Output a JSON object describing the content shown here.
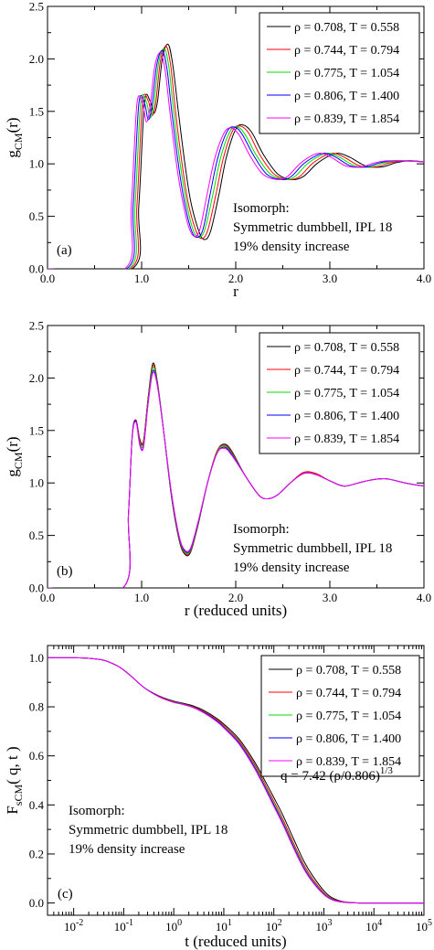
{
  "chart_data": [
    {
      "type": "line",
      "panel_label": "(a)",
      "xlabel": "r",
      "ylabel_main": "g",
      "ylabel_sub": "CM",
      "ylabel_tail": "(r)",
      "xlim": [
        0,
        4
      ],
      "ylim": [
        0,
        2.5
      ],
      "xticks": [
        "0.0",
        "1.0",
        "2.0",
        "3.0",
        "4.0"
      ],
      "yticks": [
        "0.0",
        "0.5",
        "1.0",
        "1.5",
        "2.0",
        "2.5"
      ],
      "grid": false,
      "legend_position": "top-right",
      "annotation": [
        "Isomorph:",
        "Symmetric dumbbell, IPL 18",
        "19% density increase"
      ],
      "series": [
        {
          "name": "ρ = 0.708, T = 0.558",
          "color": "#000000",
          "x": [
            0.0,
            0.9,
            0.97,
            1.03,
            1.09,
            1.13,
            1.17,
            1.22,
            1.28,
            1.33,
            1.39,
            1.46,
            1.52,
            1.6,
            1.66,
            1.73,
            1.82,
            1.9,
            2.0,
            2.08,
            2.17,
            2.3,
            2.45,
            2.6,
            2.72,
            2.86,
            3.0,
            3.1,
            3.22,
            3.38,
            3.55,
            3.7,
            3.85,
            4.0
          ],
          "y": [
            0.0,
            0.0,
            0.6,
            1.58,
            1.6,
            1.48,
            1.6,
            2.0,
            2.14,
            1.95,
            1.5,
            1.0,
            0.65,
            0.38,
            0.28,
            0.35,
            0.7,
            1.06,
            1.33,
            1.37,
            1.3,
            1.08,
            0.9,
            0.85,
            0.88,
            1.0,
            1.08,
            1.1,
            1.06,
            0.98,
            0.97,
            1.01,
            1.03,
            1.02
          ]
        },
        {
          "name": "ρ = 0.744, T = 0.794",
          "color": "#ff0000",
          "x": [
            0.0,
            0.88,
            0.95,
            1.01,
            1.07,
            1.11,
            1.15,
            1.2,
            1.26,
            1.31,
            1.36,
            1.43,
            1.49,
            1.57,
            1.63,
            1.7,
            1.79,
            1.87,
            1.97,
            2.05,
            2.14,
            2.26,
            2.41,
            2.56,
            2.68,
            2.81,
            2.95,
            3.05,
            3.16,
            3.32,
            3.49,
            3.64,
            3.8,
            4.0
          ],
          "y": [
            0.0,
            0.0,
            0.6,
            1.58,
            1.6,
            1.46,
            1.58,
            1.98,
            2.12,
            1.93,
            1.5,
            1.0,
            0.65,
            0.38,
            0.29,
            0.36,
            0.71,
            1.06,
            1.32,
            1.36,
            1.29,
            1.08,
            0.9,
            0.85,
            0.88,
            1.0,
            1.08,
            1.1,
            1.06,
            0.98,
            0.97,
            1.01,
            1.03,
            1.02
          ]
        },
        {
          "name": "ρ = 0.775, T = 1.054",
          "color": "#00dd00",
          "x": [
            0.0,
            0.86,
            0.93,
            0.99,
            1.05,
            1.09,
            1.13,
            1.18,
            1.24,
            1.29,
            1.34,
            1.41,
            1.47,
            1.54,
            1.6,
            1.67,
            1.76,
            1.84,
            1.94,
            2.02,
            2.1,
            2.22,
            2.37,
            2.52,
            2.63,
            2.76,
            2.9,
            3.0,
            3.11,
            3.27,
            3.43,
            3.58,
            3.74,
            4.0
          ],
          "y": [
            0.0,
            0.0,
            0.6,
            1.58,
            1.59,
            1.44,
            1.56,
            1.96,
            2.1,
            1.92,
            1.5,
            1.0,
            0.66,
            0.39,
            0.3,
            0.37,
            0.72,
            1.06,
            1.31,
            1.35,
            1.28,
            1.08,
            0.9,
            0.85,
            0.88,
            1.0,
            1.08,
            1.1,
            1.06,
            0.98,
            0.97,
            1.01,
            1.03,
            1.02
          ]
        },
        {
          "name": "ρ = 0.806, T = 1.400",
          "color": "#0000ff",
          "x": [
            0.0,
            0.84,
            0.91,
            0.97,
            1.03,
            1.07,
            1.11,
            1.16,
            1.22,
            1.27,
            1.32,
            1.39,
            1.45,
            1.52,
            1.58,
            1.65,
            1.73,
            1.81,
            1.91,
            1.99,
            2.07,
            2.19,
            2.33,
            2.48,
            2.59,
            2.72,
            2.86,
            2.96,
            3.07,
            3.22,
            3.38,
            3.53,
            3.68,
            4.0
          ],
          "y": [
            0.0,
            0.0,
            0.6,
            1.57,
            1.58,
            1.42,
            1.55,
            1.94,
            2.08,
            1.9,
            1.5,
            1.0,
            0.66,
            0.39,
            0.3,
            0.37,
            0.72,
            1.06,
            1.31,
            1.35,
            1.28,
            1.08,
            0.9,
            0.85,
            0.88,
            1.0,
            1.08,
            1.1,
            1.06,
            0.98,
            0.97,
            1.01,
            1.03,
            1.02
          ]
        },
        {
          "name": "ρ = 0.839, T = 1.854",
          "color": "#ff00ff",
          "x": [
            0.0,
            0.82,
            0.89,
            0.95,
            1.01,
            1.05,
            1.09,
            1.14,
            1.2,
            1.25,
            1.3,
            1.37,
            1.43,
            1.5,
            1.56,
            1.62,
            1.7,
            1.78,
            1.88,
            1.96,
            2.04,
            2.15,
            2.29,
            2.44,
            2.55,
            2.68,
            2.81,
            2.91,
            3.02,
            3.17,
            3.33,
            3.48,
            3.63,
            4.0
          ],
          "y": [
            0.0,
            0.0,
            0.6,
            1.57,
            1.57,
            1.4,
            1.54,
            1.93,
            2.06,
            1.89,
            1.5,
            1.0,
            0.67,
            0.4,
            0.31,
            0.38,
            0.73,
            1.06,
            1.3,
            1.34,
            1.27,
            1.08,
            0.9,
            0.85,
            0.88,
            1.0,
            1.08,
            1.1,
            1.06,
            0.98,
            0.97,
            1.01,
            1.03,
            1.02
          ]
        }
      ]
    },
    {
      "type": "line",
      "panel_label": "(b)",
      "xlabel": "r (reduced units)",
      "ylabel_main": "g",
      "ylabel_sub": "CM",
      "ylabel_tail": "(r)",
      "xlim": [
        0,
        4
      ],
      "ylim": [
        0,
        2.5
      ],
      "xticks": [
        "0.0",
        "1.0",
        "2.0",
        "3.0",
        "4.0"
      ],
      "yticks": [
        "0.0",
        "0.5",
        "1.0",
        "1.5",
        "2.0",
        "2.5"
      ],
      "grid": false,
      "legend_position": "top-right",
      "annotation": [
        "Isomorph:",
        "Symmetric dumbbell, IPL 18",
        "19% density increase"
      ],
      "x": [
        0.0,
        0.8,
        0.86,
        0.9,
        0.94,
        0.98,
        1.02,
        1.07,
        1.12,
        1.17,
        1.24,
        1.32,
        1.4,
        1.46,
        1.52,
        1.6,
        1.7,
        1.8,
        1.88,
        1.96,
        2.1,
        2.25,
        2.35,
        2.45,
        2.58,
        2.72,
        2.85,
        3.0,
        3.15,
        3.3,
        3.45,
        3.6,
        3.8,
        4.0
      ],
      "series": [
        {
          "name": "ρ = 0.708, T = 0.558",
          "color": "#000000",
          "y": [
            0.0,
            0.0,
            0.7,
            1.45,
            1.6,
            1.42,
            1.4,
            1.82,
            2.14,
            1.95,
            1.45,
            0.85,
            0.45,
            0.32,
            0.34,
            0.6,
            1.0,
            1.3,
            1.37,
            1.3,
            1.07,
            0.88,
            0.85,
            0.89,
            1.0,
            1.1,
            1.09,
            1.02,
            0.97,
            1.0,
            1.03,
            1.04,
            1.0,
            0.97
          ]
        },
        {
          "name": "ρ = 0.744, T = 0.794",
          "color": "#ff0000",
          "y": [
            0.0,
            0.0,
            0.7,
            1.45,
            1.6,
            1.41,
            1.39,
            1.81,
            2.12,
            1.94,
            1.45,
            0.86,
            0.46,
            0.33,
            0.35,
            0.6,
            1.0,
            1.3,
            1.36,
            1.29,
            1.07,
            0.88,
            0.85,
            0.89,
            1.0,
            1.1,
            1.09,
            1.02,
            0.97,
            1.0,
            1.03,
            1.04,
            1.0,
            0.97
          ]
        },
        {
          "name": "ρ = 0.775, T = 1.054",
          "color": "#00dd00",
          "y": [
            0.0,
            0.0,
            0.7,
            1.44,
            1.59,
            1.39,
            1.37,
            1.79,
            2.1,
            1.93,
            1.45,
            0.87,
            0.47,
            0.34,
            0.36,
            0.61,
            1.0,
            1.29,
            1.35,
            1.28,
            1.07,
            0.88,
            0.85,
            0.89,
            1.0,
            1.09,
            1.08,
            1.02,
            0.97,
            1.0,
            1.03,
            1.04,
            1.0,
            0.97
          ]
        },
        {
          "name": "ρ = 0.806, T = 1.400",
          "color": "#0000ff",
          "y": [
            0.0,
            0.0,
            0.7,
            1.44,
            1.59,
            1.37,
            1.35,
            1.77,
            2.07,
            1.92,
            1.45,
            0.88,
            0.48,
            0.35,
            0.37,
            0.62,
            1.0,
            1.28,
            1.34,
            1.27,
            1.07,
            0.88,
            0.85,
            0.89,
            1.0,
            1.09,
            1.08,
            1.02,
            0.97,
            1.0,
            1.03,
            1.04,
            1.0,
            0.97
          ]
        },
        {
          "name": "ρ = 0.839, T = 1.854",
          "color": "#ff00ff",
          "y": [
            0.0,
            0.0,
            0.7,
            1.43,
            1.58,
            1.36,
            1.34,
            1.76,
            2.05,
            1.91,
            1.45,
            0.89,
            0.49,
            0.36,
            0.38,
            0.63,
            1.0,
            1.28,
            1.33,
            1.26,
            1.07,
            0.88,
            0.85,
            0.89,
            1.0,
            1.09,
            1.08,
            1.02,
            0.97,
            1.0,
            1.03,
            1.04,
            1.0,
            0.97
          ]
        }
      ]
    },
    {
      "type": "line",
      "panel_label": "(c)",
      "xlabel": "t (reduced units)",
      "ylabel_main": "F",
      "ylabel_sub": "sCM",
      "ylabel_tail": "( q, t )",
      "xscale": "log",
      "xlim": [
        0.003,
        100000
      ],
      "ylim": [
        -0.05,
        1.05
      ],
      "xticks": [
        {
          "base": "10",
          "exp": "-2"
        },
        {
          "base": "10",
          "exp": "-1"
        },
        {
          "base": "10",
          "exp": "0"
        },
        {
          "base": "10",
          "exp": "1"
        },
        {
          "base": "10",
          "exp": "2"
        },
        {
          "base": "10",
          "exp": "3"
        },
        {
          "base": "10",
          "exp": "4"
        },
        {
          "base": "10",
          "exp": "5"
        }
      ],
      "yticks": [
        "0.0",
        "0.2",
        "0.4",
        "0.6",
        "0.8",
        "1.0"
      ],
      "grid": false,
      "legend_position": "top-right",
      "annotation": [
        "Isomorph:",
        "Symmetric dumbbell, IPL 18",
        "19% density increase"
      ],
      "formula": {
        "text": "q = 7.42 (ρ/0.806)",
        "exp": "1/3"
      },
      "x": [
        0.003,
        0.01,
        0.02,
        0.04,
        0.07,
        0.1,
        0.15,
        0.25,
        0.4,
        0.6,
        1,
        1.5,
        2.5,
        4,
        7,
        10,
        20,
        40,
        70,
        100,
        150,
        250,
        400,
        600,
        1000,
        1500,
        2500,
        5000,
        10000,
        100000
      ],
      "series": [
        {
          "name": "ρ = 0.708, T = 0.558",
          "color": "#000000",
          "y": [
            1.0,
            1.0,
            0.998,
            0.99,
            0.97,
            0.95,
            0.92,
            0.88,
            0.855,
            0.838,
            0.823,
            0.815,
            0.803,
            0.785,
            0.755,
            0.73,
            0.67,
            0.58,
            0.49,
            0.43,
            0.36,
            0.26,
            0.17,
            0.11,
            0.05,
            0.02,
            0.005,
            0.0,
            0.0,
            0.0
          ]
        },
        {
          "name": "ρ = 0.744, T = 0.794",
          "color": "#ff0000",
          "y": [
            1.0,
            1.0,
            0.998,
            0.99,
            0.97,
            0.95,
            0.92,
            0.88,
            0.854,
            0.836,
            0.821,
            0.813,
            0.8,
            0.781,
            0.75,
            0.724,
            0.662,
            0.57,
            0.477,
            0.415,
            0.343,
            0.242,
            0.155,
            0.097,
            0.042,
            0.016,
            0.004,
            0.0,
            0.0,
            0.0
          ]
        },
        {
          "name": "ρ = 0.775, T = 1.054",
          "color": "#00dd00",
          "y": [
            1.0,
            1.0,
            0.998,
            0.99,
            0.97,
            0.95,
            0.92,
            0.88,
            0.853,
            0.835,
            0.82,
            0.812,
            0.798,
            0.778,
            0.746,
            0.719,
            0.656,
            0.562,
            0.468,
            0.405,
            0.332,
            0.232,
            0.146,
            0.09,
            0.038,
            0.014,
            0.003,
            0.0,
            0.0,
            0.0
          ]
        },
        {
          "name": "ρ = 0.806, T = 1.400",
          "color": "#0000ff",
          "y": [
            1.0,
            1.0,
            0.998,
            0.99,
            0.97,
            0.95,
            0.92,
            0.88,
            0.853,
            0.834,
            0.819,
            0.811,
            0.797,
            0.777,
            0.745,
            0.717,
            0.653,
            0.558,
            0.463,
            0.4,
            0.327,
            0.227,
            0.142,
            0.087,
            0.036,
            0.013,
            0.003,
            0.0,
            0.0,
            0.0
          ]
        },
        {
          "name": "ρ = 0.839, T = 1.854",
          "color": "#ff00ff",
          "y": [
            1.0,
            1.0,
            0.998,
            0.99,
            0.97,
            0.95,
            0.92,
            0.88,
            0.852,
            0.834,
            0.818,
            0.81,
            0.796,
            0.775,
            0.742,
            0.714,
            0.649,
            0.553,
            0.458,
            0.394,
            0.322,
            0.222,
            0.138,
            0.084,
            0.034,
            0.012,
            0.003,
            0.0,
            0.0,
            0.0
          ]
        }
      ]
    }
  ]
}
